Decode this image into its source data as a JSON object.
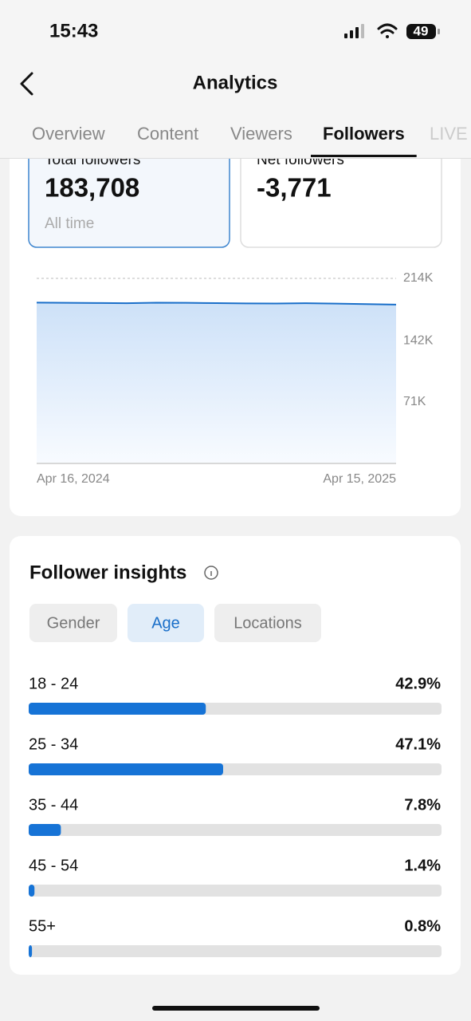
{
  "status_bar": {
    "time": "15:43",
    "battery": "49"
  },
  "header": {
    "title": "Analytics"
  },
  "tabs": [
    {
      "label": "Overview"
    },
    {
      "label": "Content"
    },
    {
      "label": "Viewers"
    },
    {
      "label": "Followers",
      "selected": true
    },
    {
      "label": "LIVE"
    }
  ],
  "stat_cards": [
    {
      "label": "Total followers",
      "value": "183,708",
      "note": "All time",
      "selected": true
    },
    {
      "label": "Net followers",
      "value": "-3,771"
    }
  ],
  "insights": {
    "title": "Follower insights",
    "filters": [
      {
        "label": "Gender"
      },
      {
        "label": "Age",
        "selected": true
      },
      {
        "label": "Locations"
      }
    ]
  },
  "chart_data": [
    {
      "type": "area",
      "categories": [
        "Apr 16, 2024",
        null,
        null,
        null,
        null,
        null,
        null,
        null,
        null,
        null,
        null,
        null,
        "Apr 15, 2025"
      ],
      "values": [
        186000,
        185800,
        185500,
        185300,
        185900,
        185700,
        185400,
        185100,
        185000,
        185300,
        184800,
        184300,
        183708
      ],
      "color": "#1a6fc9",
      "ylim": [
        0,
        214000
      ],
      "yticks": [
        {
          "value": 214000,
          "label": "214K"
        },
        {
          "value": 142000,
          "label": "142K"
        },
        {
          "value": 71000,
          "label": "71K"
        }
      ],
      "grid": true
    },
    {
      "type": "hbar",
      "categories": [
        "18 - 24",
        "25 - 34",
        "35 - 44",
        "45 - 54",
        "55+"
      ],
      "values": [
        42.9,
        47.1,
        7.8,
        1.4,
        0.8
      ],
      "value_labels": [
        "42.9%",
        "47.1%",
        "7.8%",
        "1.4%",
        "0.8%"
      ],
      "color": "#1673d6",
      "xlim": [
        0,
        100
      ]
    }
  ]
}
